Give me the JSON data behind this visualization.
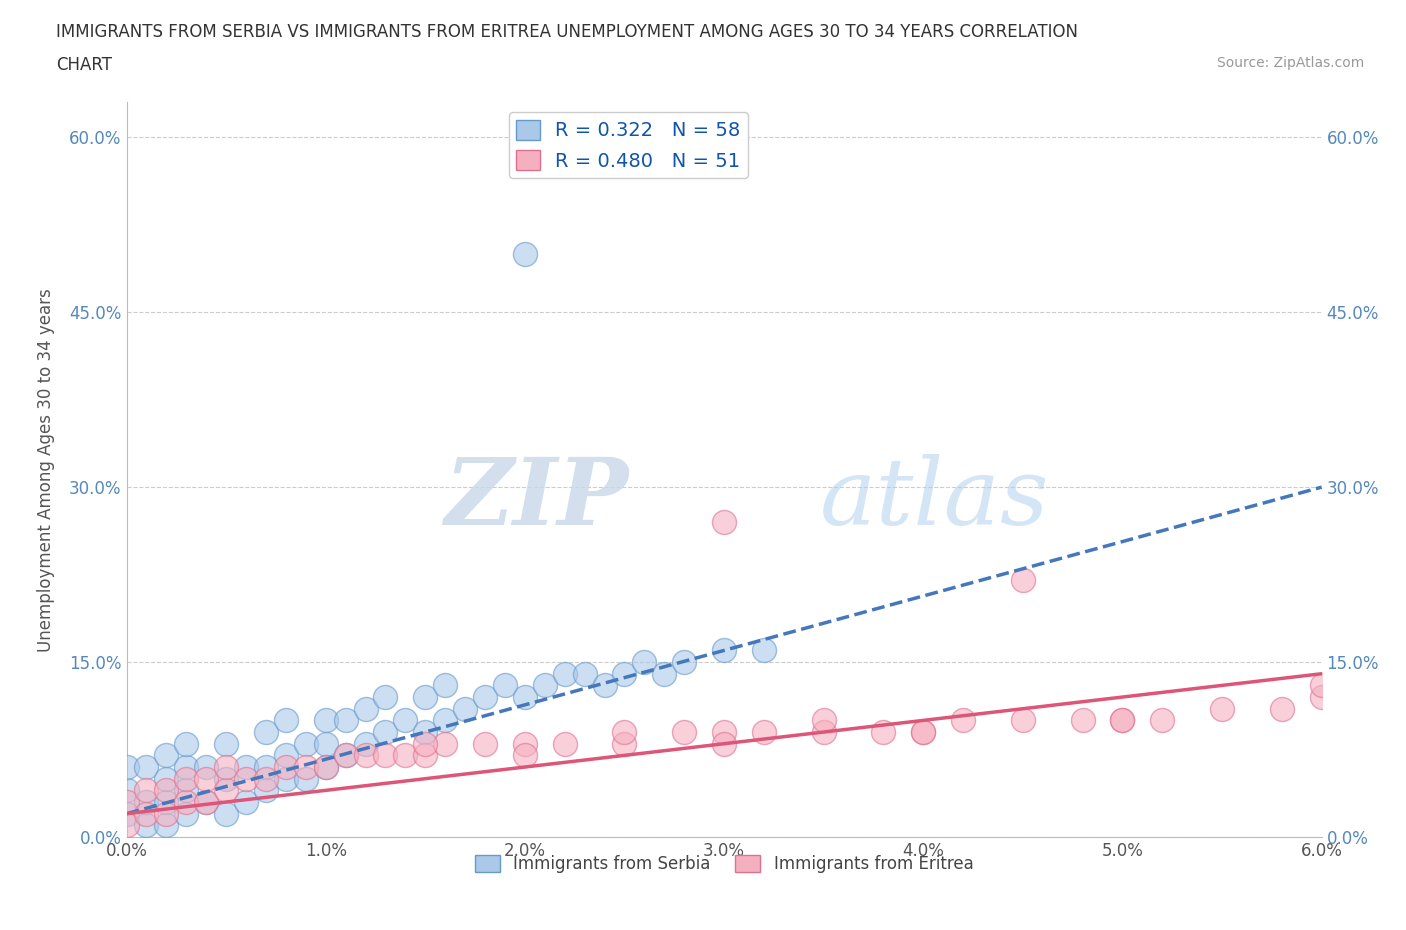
{
  "title_line1": "IMMIGRANTS FROM SERBIA VS IMMIGRANTS FROM ERITREA UNEMPLOYMENT AMONG AGES 30 TO 34 YEARS CORRELATION",
  "title_line2": "CHART",
  "source": "Source: ZipAtlas.com",
  "ylabel": "Unemployment Among Ages 30 to 34 years",
  "xlim": [
    0.0,
    0.06
  ],
  "ylim": [
    0.0,
    0.63
  ],
  "xticks": [
    0.0,
    0.01,
    0.02,
    0.03,
    0.04,
    0.05,
    0.06
  ],
  "xticklabels": [
    "0.0%",
    "1.0%",
    "2.0%",
    "3.0%",
    "4.0%",
    "5.0%",
    "6.0%"
  ],
  "yticks": [
    0.0,
    0.15,
    0.3,
    0.45,
    0.6
  ],
  "yticklabels": [
    "0.0%",
    "15.0%",
    "30.0%",
    "45.0%",
    "60.0%"
  ],
  "serbia_fill_color": "#aac8e8",
  "eritrea_fill_color": "#f5b0c0",
  "serbia_edge_color": "#6699cc",
  "eritrea_edge_color": "#e07090",
  "serbia_line_color": "#4477bb",
  "eritrea_line_color": "#dd5577",
  "serbia_R": 0.322,
  "serbia_N": 58,
  "eritrea_R": 0.48,
  "eritrea_N": 51,
  "legend_label_serbia": "Immigrants from Serbia",
  "legend_label_eritrea": "Immigrants from Eritrea",
  "watermark_zip": "ZIP",
  "watermark_atlas": "atlas",
  "background_color": "#ffffff",
  "grid_color": "#cccccc",
  "serbia_scatter_x": [
    0.0,
    0.0,
    0.0,
    0.001,
    0.001,
    0.001,
    0.002,
    0.002,
    0.002,
    0.002,
    0.003,
    0.003,
    0.003,
    0.003,
    0.004,
    0.004,
    0.005,
    0.005,
    0.005,
    0.006,
    0.006,
    0.007,
    0.007,
    0.007,
    0.008,
    0.008,
    0.008,
    0.009,
    0.009,
    0.01,
    0.01,
    0.01,
    0.011,
    0.011,
    0.012,
    0.012,
    0.013,
    0.013,
    0.014,
    0.015,
    0.015,
    0.016,
    0.016,
    0.017,
    0.018,
    0.019,
    0.02,
    0.021,
    0.022,
    0.023,
    0.024,
    0.025,
    0.026,
    0.027,
    0.028,
    0.03,
    0.032,
    0.02
  ],
  "serbia_scatter_y": [
    0.02,
    0.04,
    0.06,
    0.01,
    0.03,
    0.06,
    0.01,
    0.03,
    0.05,
    0.07,
    0.02,
    0.04,
    0.06,
    0.08,
    0.03,
    0.06,
    0.02,
    0.05,
    0.08,
    0.03,
    0.06,
    0.04,
    0.06,
    0.09,
    0.05,
    0.07,
    0.1,
    0.05,
    0.08,
    0.06,
    0.08,
    0.1,
    0.07,
    0.1,
    0.08,
    0.11,
    0.09,
    0.12,
    0.1,
    0.09,
    0.12,
    0.1,
    0.13,
    0.11,
    0.12,
    0.13,
    0.12,
    0.13,
    0.14,
    0.14,
    0.13,
    0.14,
    0.15,
    0.14,
    0.15,
    0.16,
    0.16,
    0.5
  ],
  "eritrea_scatter_x": [
    0.0,
    0.0,
    0.001,
    0.001,
    0.002,
    0.002,
    0.003,
    0.003,
    0.004,
    0.004,
    0.005,
    0.005,
    0.006,
    0.007,
    0.008,
    0.009,
    0.01,
    0.011,
    0.012,
    0.013,
    0.014,
    0.015,
    0.016,
    0.018,
    0.02,
    0.022,
    0.025,
    0.028,
    0.03,
    0.032,
    0.035,
    0.038,
    0.04,
    0.042,
    0.045,
    0.048,
    0.05,
    0.052,
    0.055,
    0.058,
    0.06,
    0.03,
    0.045,
    0.015,
    0.025,
    0.035,
    0.02,
    0.03,
    0.04,
    0.05,
    0.06
  ],
  "eritrea_scatter_y": [
    0.01,
    0.03,
    0.02,
    0.04,
    0.02,
    0.04,
    0.03,
    0.05,
    0.03,
    0.05,
    0.04,
    0.06,
    0.05,
    0.05,
    0.06,
    0.06,
    0.06,
    0.07,
    0.07,
    0.07,
    0.07,
    0.07,
    0.08,
    0.08,
    0.08,
    0.08,
    0.08,
    0.09,
    0.09,
    0.09,
    0.09,
    0.09,
    0.09,
    0.1,
    0.1,
    0.1,
    0.1,
    0.1,
    0.11,
    0.11,
    0.12,
    0.27,
    0.22,
    0.08,
    0.09,
    0.1,
    0.07,
    0.08,
    0.09,
    0.1,
    0.13
  ],
  "serbia_trend_x": [
    0.0,
    0.06
  ],
  "serbia_trend_y": [
    0.02,
    0.3
  ],
  "eritrea_trend_x": [
    0.0,
    0.06
  ],
  "eritrea_trend_y": [
    0.02,
    0.14
  ]
}
